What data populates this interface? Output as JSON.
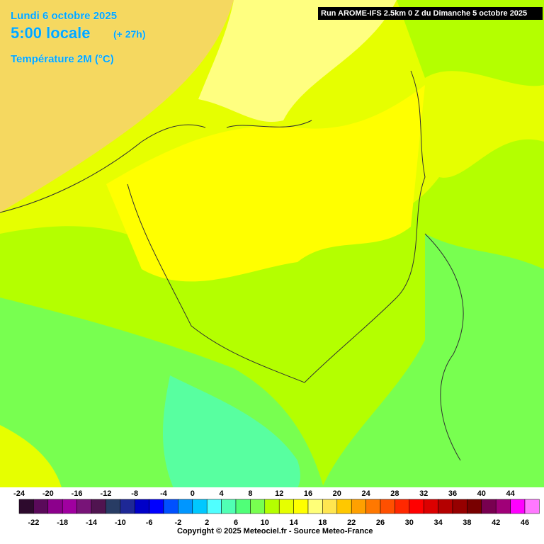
{
  "header": {
    "date": "Lundi 6 octobre 2025",
    "time": "5:00 locale",
    "lead": "(+ 27h)",
    "variable": "Température 2M (°C)",
    "run": "Run AROME-IFS 2.5km 0 Z du Dimanche 5 octobre 2025"
  },
  "legend": {
    "labels": [
      -24,
      -22,
      -20,
      -18,
      -16,
      -14,
      -12,
      -10,
      -8,
      -6,
      -4,
      -2,
      0,
      2,
      4,
      6,
      8,
      10,
      12,
      14,
      16,
      18,
      20,
      22,
      24,
      26,
      28,
      30,
      32,
      34,
      36,
      38,
      40,
      42,
      44,
      46
    ],
    "colors": [
      "#2d0a2d",
      "#5a0a5a",
      "#8c008c",
      "#a000a0",
      "#781478",
      "#501450",
      "#283c64",
      "#1e2896",
      "#0000c8",
      "#0000ff",
      "#0050ff",
      "#0096ff",
      "#00c8ff",
      "#50ffff",
      "#50ffb4",
      "#50ff78",
      "#78ff50",
      "#b4ff00",
      "#e6ff00",
      "#ffff00",
      "#ffff78",
      "#ffe650",
      "#ffc800",
      "#ffa000",
      "#ff7800",
      "#ff5000",
      "#ff2800",
      "#ff0000",
      "#dc0000",
      "#b40000",
      "#960000",
      "#780000",
      "#780050",
      "#a00078",
      "#ff00ff",
      "#ff78ff"
    ]
  },
  "footer": {
    "copyright": "Copyright © 2025 Meteociel.fr - Source Meteo-France"
  }
}
